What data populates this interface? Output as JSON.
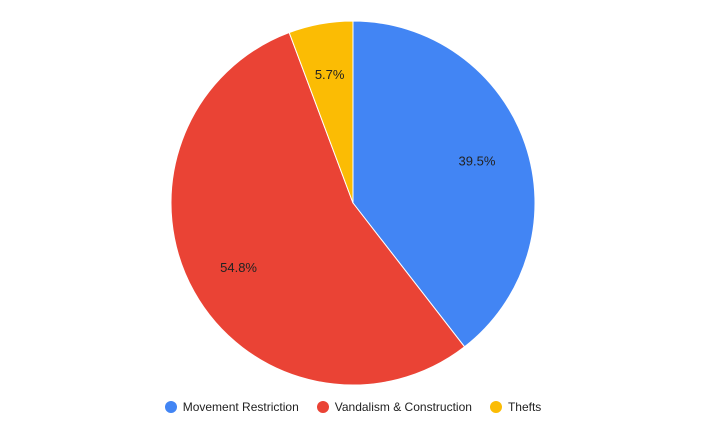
{
  "chart_data": {
    "type": "pie",
    "title": "",
    "categories": [
      "Movement Restriction",
      "Vandalism & Construction",
      "Thefts"
    ],
    "values": [
      39.5,
      54.8,
      5.7
    ],
    "value_labels": [
      "39.5%",
      "54.8%",
      "5.7%"
    ],
    "colors": [
      "#4285F4",
      "#EA4335",
      "#FBBC04"
    ],
    "start_angle_deg": 0,
    "direction": "clockwise",
    "legend_position": "bottom"
  }
}
